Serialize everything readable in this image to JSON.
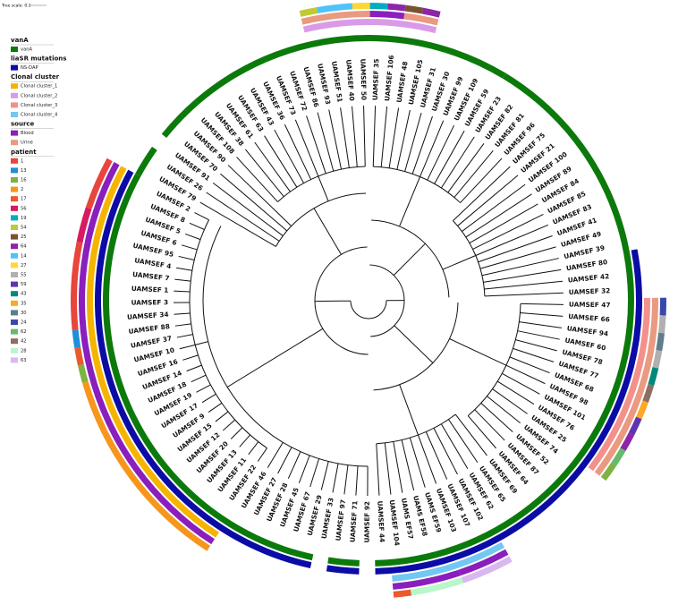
{
  "tree_scale": "Tree scale: 0.1",
  "legend": [
    {
      "title": "vanA",
      "items": [
        {
          "label": "vanA",
          "color": "#0b7a0b"
        }
      ]
    },
    {
      "title": "liaSR mutations",
      "items": [
        {
          "label": "NS-DAP",
          "color": "#0b0ba6"
        }
      ]
    },
    {
      "title": "Clonal cluster",
      "items": [
        {
          "label": "Clonal cluster_1",
          "color": "#f5b400"
        },
        {
          "label": "Clonal cluster_2",
          "color": "#d99be8"
        },
        {
          "label": "Clonal cluster_3",
          "color": "#f2918a"
        },
        {
          "label": "Clonal cluster_4",
          "color": "#72c8f0"
        }
      ]
    },
    {
      "title": "source",
      "items": [
        {
          "label": "Blood",
          "color": "#8a1fbd"
        },
        {
          "label": "Urine",
          "color": "#e99a80"
        }
      ]
    },
    {
      "title": "patient",
      "items": [
        {
          "label": "1",
          "color": "#e8453c"
        },
        {
          "label": "13",
          "color": "#1e8fd8"
        },
        {
          "label": "16",
          "color": "#7cb342"
        },
        {
          "label": "2",
          "color": "#f7961d"
        },
        {
          "label": "17",
          "color": "#ea5a2c"
        },
        {
          "label": "56",
          "color": "#d81b60"
        },
        {
          "label": "19",
          "color": "#00acc1"
        },
        {
          "label": "54",
          "color": "#c0ca33"
        },
        {
          "label": "25",
          "color": "#7b5230"
        },
        {
          "label": "64",
          "color": "#8e24aa"
        },
        {
          "label": "14",
          "color": "#4fc3f7"
        },
        {
          "label": "27",
          "color": "#fdd835"
        },
        {
          "label": "55",
          "color": "#b0b0b0"
        },
        {
          "label": "59",
          "color": "#5e35b1"
        },
        {
          "label": "43",
          "color": "#00897b"
        },
        {
          "label": "35",
          "color": "#ffa726"
        },
        {
          "label": "30",
          "color": "#607d8b"
        },
        {
          "label": "24",
          "color": "#3949ab"
        },
        {
          "label": "62",
          "color": "#66bb6a"
        },
        {
          "label": "42",
          "color": "#8d6e63"
        },
        {
          "label": "28",
          "color": "#b9f6ca"
        },
        {
          "label": "63",
          "color": "#d9b8f2"
        }
      ]
    }
  ],
  "leaves": [
    "UAMSEF 35",
    "UAMSEF 106",
    "UAMSEF 48",
    "UAMSEF 105",
    "UAMSEF 31",
    "UAMSEF 30",
    "UAMSEF 99",
    "UAMSEF 109",
    "UAMSEF 59",
    "UAMSEF 23",
    "UAMSEF 82",
    "UAMSEF 81",
    "UAMSEF 96",
    "UAMSEF 75",
    "UAMSEF 21",
    "UAMSEF 100",
    "UAMSEF 89",
    "UAMSEF 84",
    "UAMSEF 85",
    "UAMSEF 83",
    "UAMSEF 41",
    "UAMSEF 49",
    "UAMSEF 39",
    "UAMSEF 80",
    "UAMSEF 42",
    "UAMSEF 32",
    "UAMSEF 47",
    "UAMSEF 66",
    "UAMSEF 94",
    "UAMSEF 60",
    "UAMSEF 78",
    "UAMSEF 77",
    "UAMSEF 68",
    "UAMSEF 98",
    "UAMSEF 101",
    "UAMSEF 76",
    "UAMSEF 25",
    "UAMSEF 74",
    "UAMSEF 52",
    "UAMSEF 87",
    "UAMSEF 64",
    "UAMSEF 69",
    "UAMSEF 65",
    "UAMSEF 62",
    "UAMSEF 102",
    "UAMSEF 107",
    "UAMSEF 103",
    "UAMS EF59",
    "UAMS EF58",
    "UAMS EF57",
    "UAMSEF 104",
    "UAMSEF 44",
    "UAMSEF 92",
    "UAMSEF 71",
    "UAMSEF 97",
    "UAMSEF 33",
    "UAMSEF 29",
    "UAMSEF 67",
    "UAMSEF 45",
    "UAMSEF 28",
    "UAMSEF 27",
    "UAMSEF 46",
    "UAMSEF 22",
    "UAMSEF 11",
    "UAMSEF 13",
    "UAMSEF 20",
    "UAMSEF 12",
    "UAMSEF 15",
    "UAMSEF 9",
    "UAMSEF 17",
    "UAMSEF 19",
    "UAMSEF 18",
    "UAMSEF 14",
    "UAMSEF 16",
    "UAMSEF 10",
    "UAMSEF 37",
    "UAMSEF 88",
    "UAMSEF 34",
    "UAMSEF 3",
    "UAMSEF 1",
    "UAMSEF 7",
    "UAMSEF 4",
    "UAMSEF 95",
    "UAMSEF 6",
    "UAMSEF 5",
    "UAMSEF 8",
    "UAMSEF 2",
    "UAMSEF 79",
    "UAMSEF 26",
    "UAMSEF 91",
    "UAMSEF 70",
    "UAMSEF 90",
    "UAMSEF 108",
    "UAMSEF 38",
    "UAMSEF 61",
    "UAMSEF 63",
    "UAMSEF 43",
    "UAMSEF 36",
    "UAMSEF 73",
    "UAMSEF 72",
    "UAMSEF 86",
    "UAMSEF 93",
    "UAMSEF 51",
    "UAMSEF 40",
    "UAMSEF 50"
  ]
}
